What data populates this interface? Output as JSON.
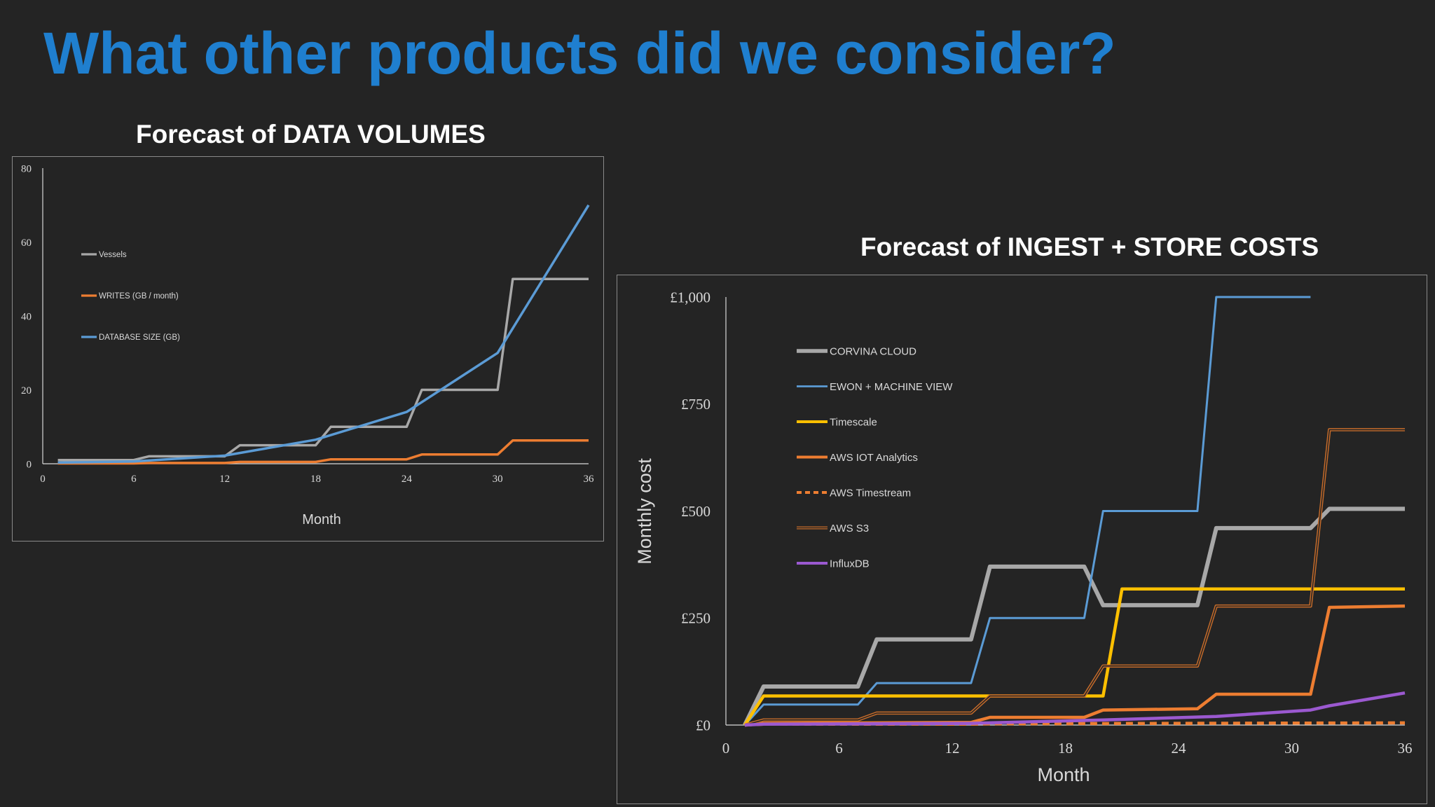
{
  "slide": {
    "title": "What other products did we consider?"
  },
  "chart_data": [
    {
      "type": "line",
      "title": "Forecast of DATA VOLUMES",
      "xlabel": "Month",
      "ylabel": "",
      "xlim": [
        0,
        36
      ],
      "ylim": [
        0,
        80
      ],
      "xticks": [
        0,
        6,
        12,
        18,
        24,
        30,
        36
      ],
      "yticks": [
        0,
        20,
        40,
        60,
        80
      ],
      "grid": false,
      "legend": "left",
      "series": [
        {
          "name": "Vessels",
          "color": "#a8a8a8",
          "width": 3.5,
          "dash": "",
          "points": [
            [
              1,
              1
            ],
            [
              6,
              1
            ],
            [
              7,
              2
            ],
            [
              12,
              2
            ],
            [
              13,
              5
            ],
            [
              18,
              5
            ],
            [
              19,
              10
            ],
            [
              24,
              10
            ],
            [
              25,
              20
            ],
            [
              30,
              20
            ],
            [
              31,
              50
            ],
            [
              36,
              50
            ]
          ]
        },
        {
          "name": "WRITES (GB / month)",
          "color": "#ed7d31",
          "width": 3.5,
          "dash": "",
          "points": [
            [
              1,
              0.1
            ],
            [
              6,
              0.1
            ],
            [
              7,
              0.2
            ],
            [
              12,
              0.2
            ],
            [
              13,
              0.5
            ],
            [
              18,
              0.5
            ],
            [
              19,
              1.2
            ],
            [
              24,
              1.2
            ],
            [
              25,
              2.5
            ],
            [
              30,
              2.5
            ],
            [
              31,
              6.3
            ],
            [
              36,
              6.3
            ]
          ]
        },
        {
          "name": "DATABASE SIZE (GB)",
          "color": "#5b9bd5",
          "width": 3.5,
          "dash": "",
          "points": [
            [
              1,
              0.3
            ],
            [
              6,
              0.6
            ],
            [
              12,
              2.2
            ],
            [
              18,
              6.5
            ],
            [
              24,
              14
            ],
            [
              30,
              30
            ],
            [
              36,
              70
            ]
          ]
        }
      ]
    },
    {
      "type": "line",
      "title": "Forecast of INGEST + STORE COSTS",
      "xlabel": "Month",
      "ylabel": "Monthly cost",
      "xlim": [
        0,
        36
      ],
      "ylim": [
        0,
        1000
      ],
      "xticks": [
        0,
        6,
        12,
        18,
        24,
        30,
        36
      ],
      "yticks": [
        0,
        250,
        500,
        750,
        1000
      ],
      "ytick_labels": [
        "£0",
        "£250",
        "£500",
        "£750",
        "£1,000"
      ],
      "grid": false,
      "legend": "left",
      "series": [
        {
          "name": "CORVINA CLOUD",
          "color": "#a8a8a8",
          "width": 6,
          "dash": "",
          "points": [
            [
              1,
              0
            ],
            [
              2,
              90
            ],
            [
              7,
              90
            ],
            [
              8,
              200
            ],
            [
              13,
              200
            ],
            [
              14,
              370
            ],
            [
              19,
              370
            ],
            [
              20,
              280
            ],
            [
              25,
              280
            ],
            [
              26,
              460
            ],
            [
              31,
              460
            ],
            [
              32,
              505
            ],
            [
              36,
              505
            ]
          ]
        },
        {
          "name": "EWON + MACHINE VIEW",
          "color": "#5b9bd5",
          "width": 3,
          "dash": "",
          "points": [
            [
              1,
              0
            ],
            [
              2,
              48
            ],
            [
              7,
              48
            ],
            [
              8,
              98
            ],
            [
              13,
              98
            ],
            [
              14,
              250
            ],
            [
              19,
              250
            ],
            [
              20,
              500
            ],
            [
              25,
              500
            ],
            [
              26,
              1000
            ],
            [
              31,
              1000
            ]
          ]
        },
        {
          "name": "Timescale",
          "color": "#ffc000",
          "width": 4.5,
          "dash": "",
          "points": [
            [
              1,
              0
            ],
            [
              2,
              68
            ],
            [
              20,
              68
            ],
            [
              21,
              318
            ],
            [
              36,
              318
            ]
          ]
        },
        {
          "name": "AWS IOT Analytics",
          "color": "#ed7d31",
          "width": 4.5,
          "dash": "",
          "points": [
            [
              1,
              0
            ],
            [
              2,
              4
            ],
            [
              13,
              6
            ],
            [
              14,
              18
            ],
            [
              19,
              18
            ],
            [
              20,
              35
            ],
            [
              25,
              38
            ],
            [
              26,
              72
            ],
            [
              31,
              72
            ],
            [
              32,
              275
            ],
            [
              36,
              278
            ]
          ]
        },
        {
          "name": "AWS Timestream",
          "color": "#ed7d31",
          "width": 4.5,
          "dash": "10,7",
          "points": [
            [
              1,
              0
            ],
            [
              2,
              2
            ],
            [
              13,
              2
            ],
            [
              14,
              3
            ],
            [
              36,
              5
            ]
          ]
        },
        {
          "name": "AWS S3",
          "color": "#c56b2a",
          "width": 4.5,
          "dash": "",
          "double": true,
          "points": [
            [
              1,
              0
            ],
            [
              2,
              12
            ],
            [
              7,
              12
            ],
            [
              8,
              28
            ],
            [
              13,
              28
            ],
            [
              14,
              68
            ],
            [
              19,
              68
            ],
            [
              20,
              138
            ],
            [
              25,
              138
            ],
            [
              26,
              278
            ],
            [
              31,
              278
            ],
            [
              32,
              690
            ],
            [
              36,
              690
            ]
          ]
        },
        {
          "name": "InfluxDB",
          "color": "#9b59d0",
          "width": 4.5,
          "dash": "",
          "points": [
            [
              1,
              0
            ],
            [
              2,
              2
            ],
            [
              13,
              4
            ],
            [
              20,
              12
            ],
            [
              26,
              20
            ],
            [
              31,
              35
            ],
            [
              32,
              45
            ],
            [
              36,
              75
            ]
          ]
        }
      ]
    }
  ]
}
